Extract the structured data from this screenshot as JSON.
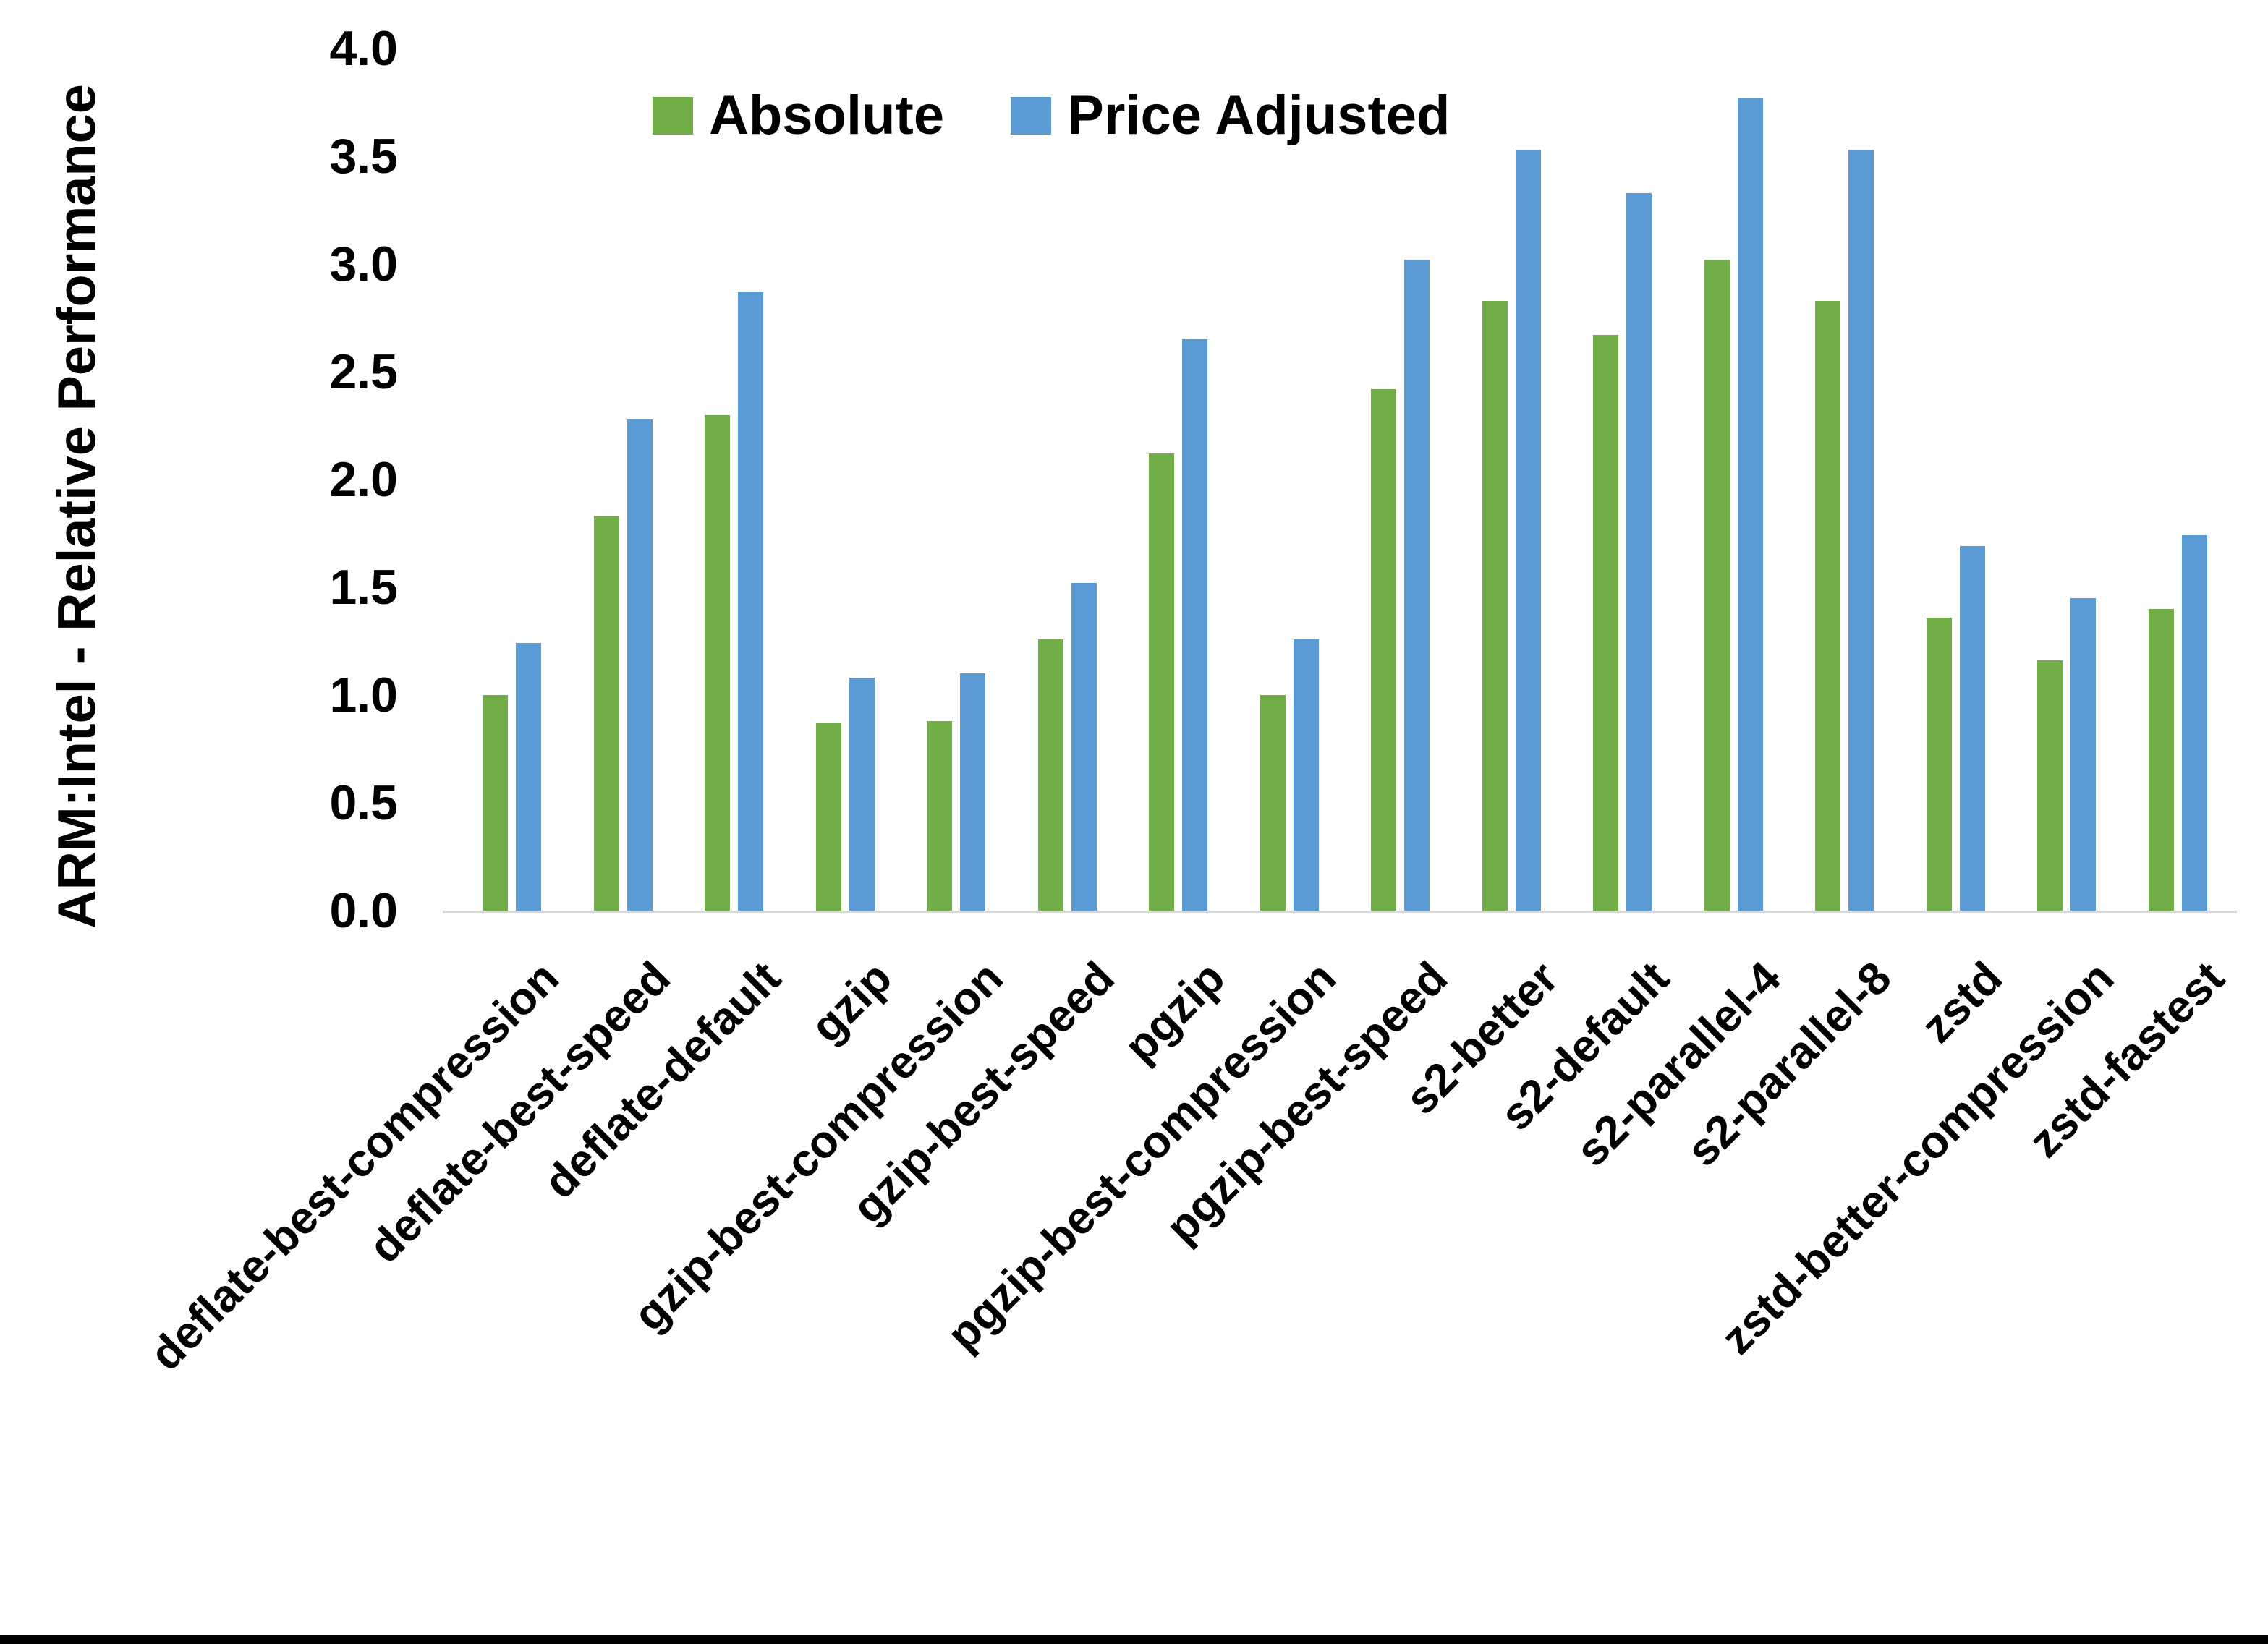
{
  "chart_data": {
    "type": "bar",
    "title": "",
    "xlabel": "",
    "ylabel": "ARM:Intel - Relative Performance",
    "ylim": [
      0.0,
      4.0
    ],
    "ytick_step": 0.5,
    "ytick_labels": [
      "0.0",
      "0.5",
      "1.0",
      "1.5",
      "2.0",
      "2.5",
      "3.0",
      "3.5",
      "4.0"
    ],
    "grid": false,
    "legend_position": "top-center",
    "categories": [
      "deflate-best-compression",
      "deflate-best-speed",
      "deflate-default",
      "gzip",
      "gzip-best-compression",
      "gzip-best-speed",
      "pgzip",
      "pgzip-best-compression",
      "pgzip-best-speed",
      "s2-better",
      "s2-default",
      "s2-parallel-4",
      "s2-parallel-8",
      "zstd",
      "zstd-better-compression",
      "zstd-fastest"
    ],
    "series": [
      {
        "name": "Absolute",
        "color": "#70AD47",
        "values": [
          1.0,
          1.83,
          2.3,
          0.87,
          0.88,
          1.26,
          2.12,
          1.0,
          2.42,
          2.83,
          2.67,
          3.02,
          2.83,
          1.36,
          1.16,
          1.4
        ]
      },
      {
        "name": "Price Adjusted",
        "color": "#5B9BD5",
        "values": [
          1.24,
          2.28,
          2.87,
          1.08,
          1.1,
          1.52,
          2.65,
          1.26,
          3.02,
          3.53,
          3.33,
          3.77,
          3.53,
          1.69,
          1.45,
          1.74
        ]
      }
    ],
    "colors": {
      "background": "#FFFFFF",
      "axis_line": "#D9D9D9",
      "text": "#000000",
      "bottom_border": "#000000"
    }
  }
}
